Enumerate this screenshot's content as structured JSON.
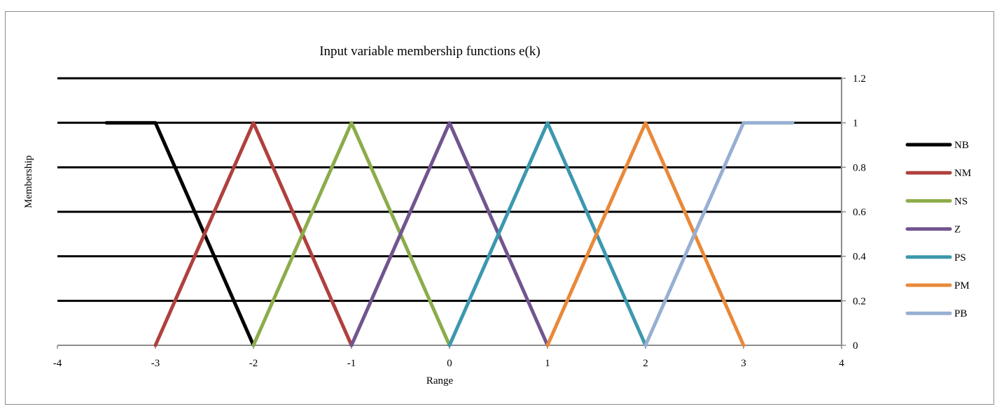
{
  "chart_data": {
    "type": "line",
    "title": "Input variable membership functions e(k)",
    "xlabel": "Range",
    "ylabel": "Membership",
    "xlim": [
      -4,
      4
    ],
    "ylim": [
      0,
      1.2
    ],
    "x_ticks": [
      "-4",
      "-3",
      "-2",
      "-1",
      "0",
      "1",
      "2",
      "3",
      "4"
    ],
    "y_ticks": [
      "0",
      "0.2",
      "0.4",
      "0.6",
      "0.8",
      "1",
      "1.2"
    ],
    "y_axis_side": "right",
    "grid": "horizontal",
    "legend_position": "right",
    "series": [
      {
        "name": "NB",
        "color": "#000000",
        "points": [
          [
            -3.5,
            1
          ],
          [
            -3,
            1
          ],
          [
            -2,
            0
          ]
        ]
      },
      {
        "name": "NM",
        "color": "#b0403c",
        "points": [
          [
            -3,
            0
          ],
          [
            -2,
            1
          ],
          [
            -1,
            0
          ]
        ]
      },
      {
        "name": "NS",
        "color": "#8cac4a",
        "points": [
          [
            -2,
            0
          ],
          [
            -1,
            1
          ],
          [
            0,
            0
          ]
        ]
      },
      {
        "name": "Z",
        "color": "#71558f",
        "points": [
          [
            -1,
            0
          ],
          [
            0,
            1
          ],
          [
            1,
            0
          ]
        ]
      },
      {
        "name": "PS",
        "color": "#3c98ad",
        "points": [
          [
            0,
            0
          ],
          [
            1,
            1
          ],
          [
            2,
            0
          ]
        ]
      },
      {
        "name": "PM",
        "color": "#e8893a",
        "points": [
          [
            1,
            0
          ],
          [
            2,
            1
          ],
          [
            3,
            0
          ]
        ]
      },
      {
        "name": "PB",
        "color": "#97afd2",
        "points": [
          [
            2,
            0
          ],
          [
            3,
            1
          ],
          [
            3.5,
            1
          ]
        ]
      }
    ]
  }
}
